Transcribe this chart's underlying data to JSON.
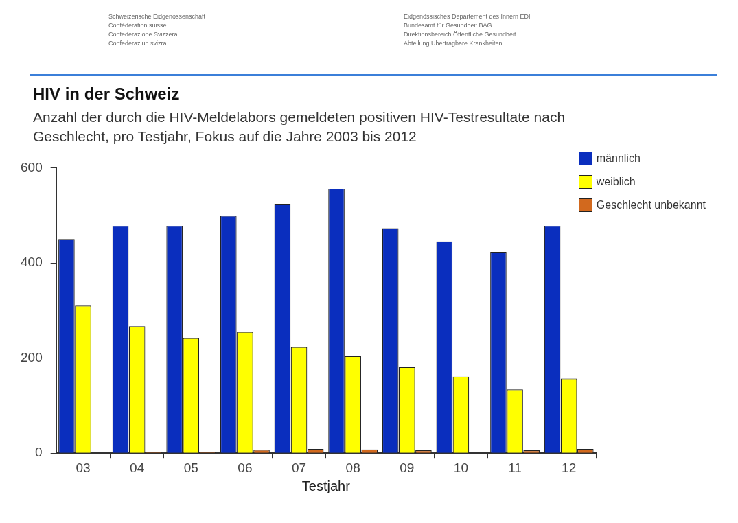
{
  "chart_data": {
    "type": "bar",
    "title": "HIV in der Schweiz",
    "subtitle": "Anzahl der durch die HIV-Meldelabors gemeldeten positiven HIV-Testresultate nach Geschlecht, pro Testjahr, Fokus auf die Jahre 2003 bis 2012",
    "xlabel": "Testjahr",
    "annotations": [
      "Schweizerische Eidgenossenschaft",
      "Confédération suisse",
      "Confederazione Svizzera",
      "Confederaziun svizra",
      "Eidgenössisches Departement des Innern EDI",
      "Bundesamt für Gesundheit BAG",
      "Direktionsbereich Öffentliche Gesundheit",
      "Abteilung Übertragbare Krankheiten"
    ],
    "categories": [
      "03",
      "04",
      "05",
      "06",
      "07",
      "08",
      "09",
      "10",
      "11",
      "12"
    ],
    "series": [
      {
        "name": "männlich",
        "color": "#0a2ebe",
        "values": [
          450,
          478,
          478,
          499,
          524,
          556,
          473,
          445,
          423,
          478
        ]
      },
      {
        "name": "weiblich",
        "color": "#ffff00",
        "values": [
          310,
          267,
          242,
          255,
          223,
          204,
          181,
          161,
          134,
          157
        ]
      },
      {
        "name": "Geschlecht unbekannt",
        "color": "#d2691e",
        "values": [
          0,
          2,
          2,
          7,
          9,
          8,
          6,
          0,
          6,
          9
        ]
      }
    ],
    "ylim": [
      0,
      600
    ],
    "yticks": [
      0,
      200,
      400,
      600
    ],
    "grid": false,
    "legend": "top right"
  }
}
